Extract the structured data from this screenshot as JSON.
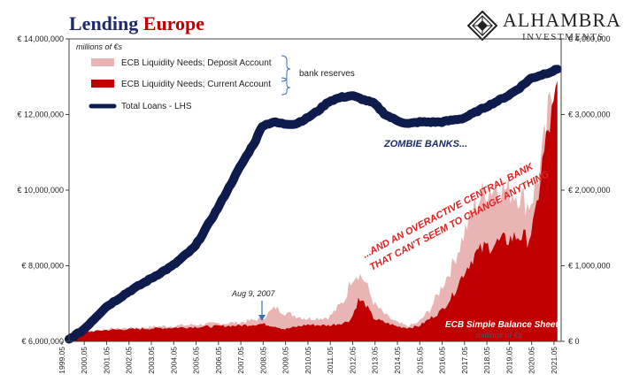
{
  "title_part1": "Lending ",
  "title_part2": "Europe",
  "logo": {
    "name": "ALHAMBRA",
    "sub": "INVESTMENTS"
  },
  "chart_data": {
    "type": "area",
    "title": "Lending Europe",
    "units_label": "millions of €s",
    "units_label_bottom": "millions of €s",
    "x": [
      "1999.05",
      "2000.05",
      "2001.05",
      "2002.05",
      "2003.05",
      "2004.05",
      "2005.05",
      "2006.05",
      "2007.05",
      "2008.05",
      "2009.05",
      "2010.05",
      "2011.05",
      "2012.05",
      "2013.05",
      "2014.05",
      "2015.05",
      "2016.05",
      "2017.05",
      "2018.05",
      "2019.05",
      "2020.05",
      "2021.05"
    ],
    "left_axis": {
      "ticks": [
        "€ 6,000,000",
        "€ 8,000,000",
        "€ 10,000,000",
        "€ 12,000,000",
        "€ 14,000,000"
      ],
      "ylim": [
        6000000,
        14000000
      ]
    },
    "right_axis": {
      "ticks": [
        "€ 0",
        "€ 1,000,000",
        "€ 2,000,000",
        "€ 3,000,000",
        "€ 4,000,000"
      ],
      "ylim": [
        0,
        4000000
      ]
    },
    "series": [
      {
        "name": "ECB Liquidity Needs; Deposit Account",
        "color": "#e8b4b4",
        "axis": "right",
        "x": [
          1999.37,
          2001.0,
          2003.0,
          2005.0,
          2007.0,
          2008.0,
          2008.6,
          2009.0,
          2010.0,
          2011.0,
          2011.7,
          2012.0,
          2012.3,
          2012.6,
          2013.0,
          2013.5,
          2014.0,
          2014.5,
          2015.0,
          2015.5,
          2016.0,
          2016.5,
          2017.0,
          2017.5,
          2018.0,
          2018.5,
          2019.0,
          2019.5,
          2019.9,
          2020.2,
          2020.5,
          2020.8,
          2021.0,
          2021.2
        ],
        "values": [
          100000,
          160000,
          190000,
          220000,
          250000,
          300000,
          450000,
          380000,
          300000,
          320000,
          550000,
          850000,
          900000,
          800000,
          500000,
          350000,
          250000,
          200000,
          250000,
          420000,
          700000,
          1000000,
          1400000,
          1800000,
          2000000,
          2050000,
          2000000,
          1950000,
          1800000,
          2000000,
          2400000,
          3000000,
          3300000,
          3600000
        ]
      },
      {
        "name": "ECB Liquidity Needs; Current Account",
        "color": "#c00000",
        "axis": "right",
        "x": [
          1999.37,
          2001.0,
          2003.0,
          2005.0,
          2007.0,
          2008.0,
          2008.6,
          2009.0,
          2010.0,
          2011.0,
          2011.7,
          2012.0,
          2012.3,
          2012.6,
          2013.0,
          2013.5,
          2014.0,
          2014.5,
          2015.0,
          2015.5,
          2016.0,
          2016.5,
          2017.0,
          2017.5,
          2018.0,
          2018.5,
          2019.0,
          2019.5,
          2019.9,
          2020.2,
          2020.5,
          2020.8,
          2021.0,
          2021.2
        ],
        "values": [
          100000,
          150000,
          170000,
          190000,
          210000,
          230000,
          200000,
          160000,
          220000,
          210000,
          250000,
          300000,
          550000,
          500000,
          300000,
          250000,
          200000,
          180000,
          200000,
          300000,
          400000,
          600000,
          900000,
          1150000,
          1250000,
          1300000,
          1350000,
          1400000,
          1350000,
          1600000,
          2300000,
          2800000,
          3000000,
          3300000
        ]
      },
      {
        "name": "Total Loans - LHS",
        "color": "#0d1b4d",
        "axis": "left",
        "x": [
          1999.37,
          2000.0,
          2001.0,
          2002.0,
          2003.0,
          2004.0,
          2005.0,
          2006.0,
          2007.0,
          2007.7,
          2008.0,
          2008.5,
          2009.0,
          2009.5,
          2010.0,
          2010.5,
          2011.0,
          2011.5,
          2012.0,
          2012.5,
          2013.0,
          2013.5,
          2014.0,
          2014.5,
          2015.0,
          2015.5,
          2016.0,
          2016.5,
          2017.0,
          2017.5,
          2018.0,
          2018.5,
          2019.0,
          2019.5,
          2020.0,
          2020.5,
          2021.0,
          2021.2
        ],
        "values": [
          6050000,
          6300000,
          6900000,
          7300000,
          7650000,
          8000000,
          8500000,
          9500000,
          10600000,
          11300000,
          11700000,
          11800000,
          11750000,
          11750000,
          11900000,
          12100000,
          12350000,
          12450000,
          12500000,
          12400000,
          12300000,
          12000000,
          11850000,
          11750000,
          11800000,
          11800000,
          11800000,
          11850000,
          11900000,
          12050000,
          12200000,
          12350000,
          12500000,
          12700000,
          12950000,
          13050000,
          13150000,
          13200000
        ]
      }
    ],
    "legend_extra": "bank reserves",
    "annotations": {
      "zombie": "ZOMBIE BANKS...",
      "overactive_line1": "...AND AN OVERACTIVE CENTRAL BANK",
      "overactive_line2": "THAT CAN'T SEEM TO CHANGE ANYTHING",
      "aug": "Aug 9, 2007",
      "balance": "ECB Simple Balance Sheet"
    }
  }
}
